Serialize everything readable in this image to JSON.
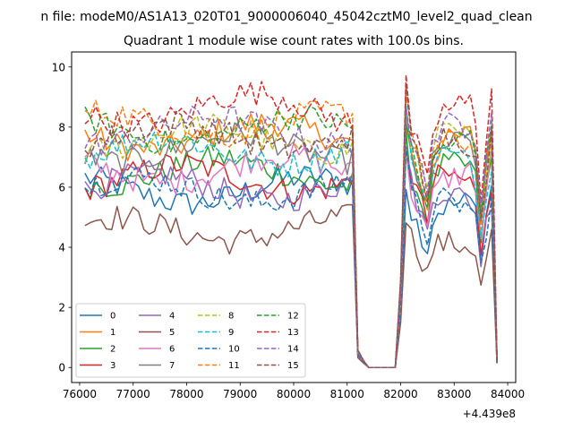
{
  "chart_data": {
    "type": "line",
    "suptitle": "n file: modeM0/AS1A13_020T01_9000006040_45042cztM0_level2_quad_clean",
    "title": "Quadrant 1 module wise count rates with 100.0s bins.",
    "xlabel": "",
    "ylabel": "",
    "x_offset_label": "+4.439e8",
    "xlim": [
      75850,
      84150
    ],
    "ylim": [
      -0.5,
      10.5
    ],
    "x_ticks": [
      76000,
      77000,
      78000,
      79000,
      80000,
      81000,
      82000,
      83000,
      84000
    ],
    "x_tick_labels": [
      "76000",
      "77000",
      "78000",
      "79000",
      "80000",
      "81000",
      "82000",
      "83000",
      "84000"
    ],
    "y_ticks": [
      0,
      2,
      4,
      6,
      8,
      10
    ],
    "y_tick_labels": [
      "0",
      "2",
      "4",
      "6",
      "8",
      "10"
    ],
    "grid": false,
    "legend_placement": "lower-left",
    "x_note": "x values are seconds relative to offset 4.439e8; 100 s bins from 76100 to 83800",
    "series": [
      {
        "name": "0",
        "color": "#1f77b4",
        "dash": "solid",
        "mean": 5.9,
        "amp": 0.45,
        "phase": 0.0
      },
      {
        "name": "1",
        "color": "#ff7f0e",
        "dash": "solid",
        "mean": 7.7,
        "amp": 0.45,
        "phase": 1.1
      },
      {
        "name": "2",
        "color": "#2ca02c",
        "dash": "solid",
        "mean": 6.5,
        "amp": 0.45,
        "phase": 2.3
      },
      {
        "name": "3",
        "color": "#d62728",
        "dash": "solid",
        "mean": 6.3,
        "amp": 0.45,
        "phase": 3.4
      },
      {
        "name": "4",
        "color": "#9467bd",
        "dash": "solid",
        "mean": 6.0,
        "amp": 0.45,
        "phase": 4.1
      },
      {
        "name": "5",
        "color": "#8c564b",
        "dash": "solid",
        "mean": 4.6,
        "amp": 0.4,
        "phase": 5.2
      },
      {
        "name": "6",
        "color": "#e377c2",
        "dash": "solid",
        "mean": 6.6,
        "amp": 0.45,
        "phase": 0.7
      },
      {
        "name": "7",
        "color": "#7f7f7f",
        "dash": "solid",
        "mean": 7.3,
        "amp": 0.45,
        "phase": 1.9
      },
      {
        "name": "8",
        "color": "#bcbd22",
        "dash": "dashed",
        "mean": 7.6,
        "amp": 0.45,
        "phase": 2.8
      },
      {
        "name": "9",
        "color": "#17becf",
        "dash": "dashed",
        "mean": 7.2,
        "amp": 0.45,
        "phase": 3.9
      },
      {
        "name": "10",
        "color": "#1f77b4",
        "dash": "dashed",
        "mean": 5.9,
        "amp": 0.45,
        "phase": 4.6
      },
      {
        "name": "11",
        "color": "#ff7f0e",
        "dash": "dashed",
        "mean": 8.1,
        "amp": 0.4,
        "phase": 5.6
      },
      {
        "name": "12",
        "color": "#2ca02c",
        "dash": "dashed",
        "mean": 7.9,
        "amp": 0.45,
        "phase": 0.3
      },
      {
        "name": "13",
        "color": "#d62728",
        "dash": "dashed",
        "mean": 8.6,
        "amp": 0.55,
        "phase": 1.5
      },
      {
        "name": "14",
        "color": "#9467bd",
        "dash": "dashed",
        "mean": 7.9,
        "amp": 0.45,
        "phase": 2.5
      },
      {
        "name": "15",
        "color": "#8c564b",
        "dash": "dashed",
        "mean": 7.7,
        "amp": 0.45,
        "phase": 3.6
      }
    ]
  }
}
